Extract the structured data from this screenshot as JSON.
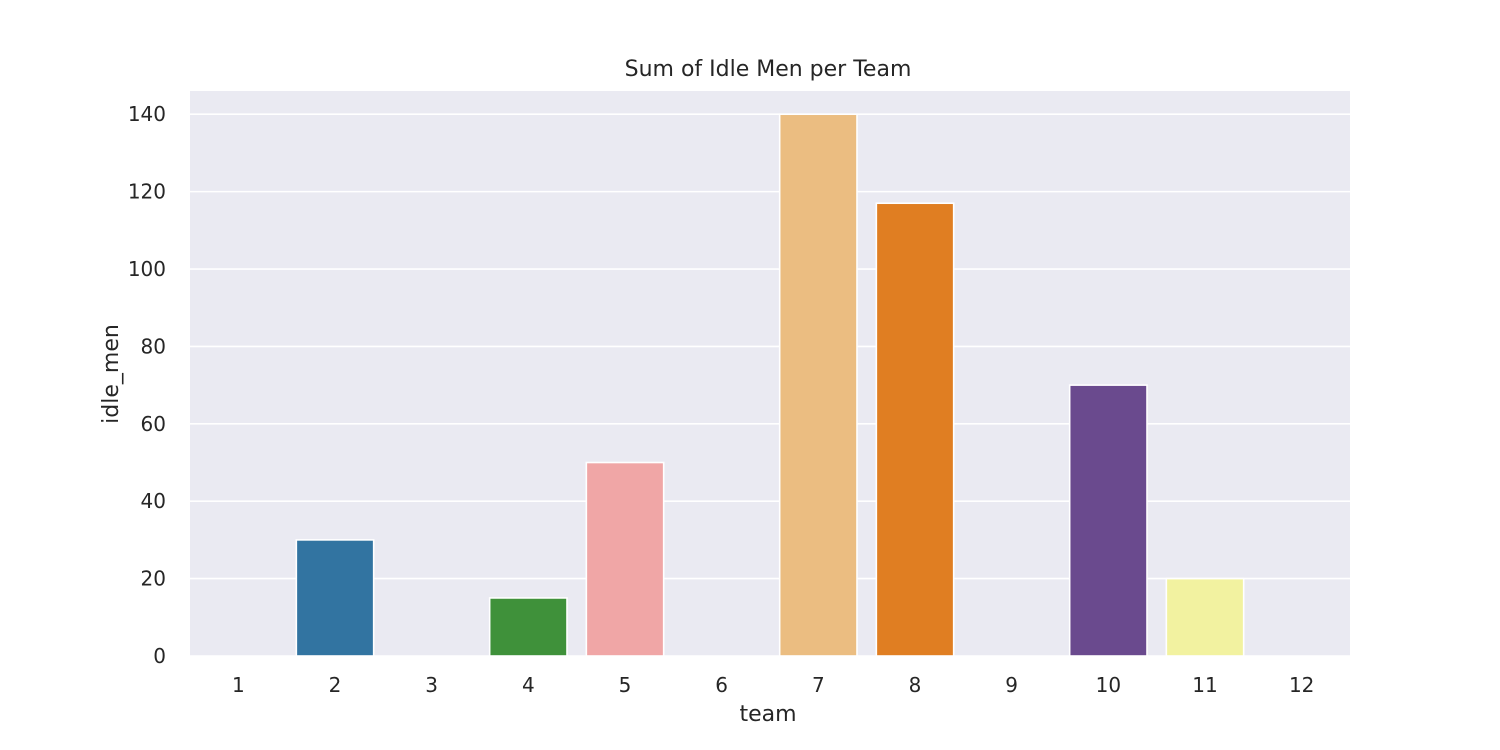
{
  "chart_data": {
    "type": "bar",
    "title": "Sum of Idle Men per Team",
    "xlabel": "team",
    "ylabel": "idle_men",
    "categories": [
      "1",
      "2",
      "3",
      "4",
      "5",
      "6",
      "7",
      "8",
      "9",
      "10",
      "11",
      "12"
    ],
    "values": [
      0,
      30,
      0,
      15,
      50,
      0,
      140,
      117,
      0,
      70,
      20,
      0
    ],
    "colors": [
      "#7fc97f",
      "#3274a1",
      "#b2df8a",
      "#3f913a",
      "#f0a6a6",
      "#e3191c",
      "#ebbd81",
      "#e07e22",
      "#cab2d6",
      "#6a4a8e",
      "#f2f2a0",
      "#b15928"
    ],
    "ylim": [
      0,
      146
    ],
    "yticks": [
      0,
      20,
      40,
      60,
      80,
      100,
      120,
      140
    ],
    "grid": true,
    "legend": "none",
    "background": "#eaeaf2"
  }
}
